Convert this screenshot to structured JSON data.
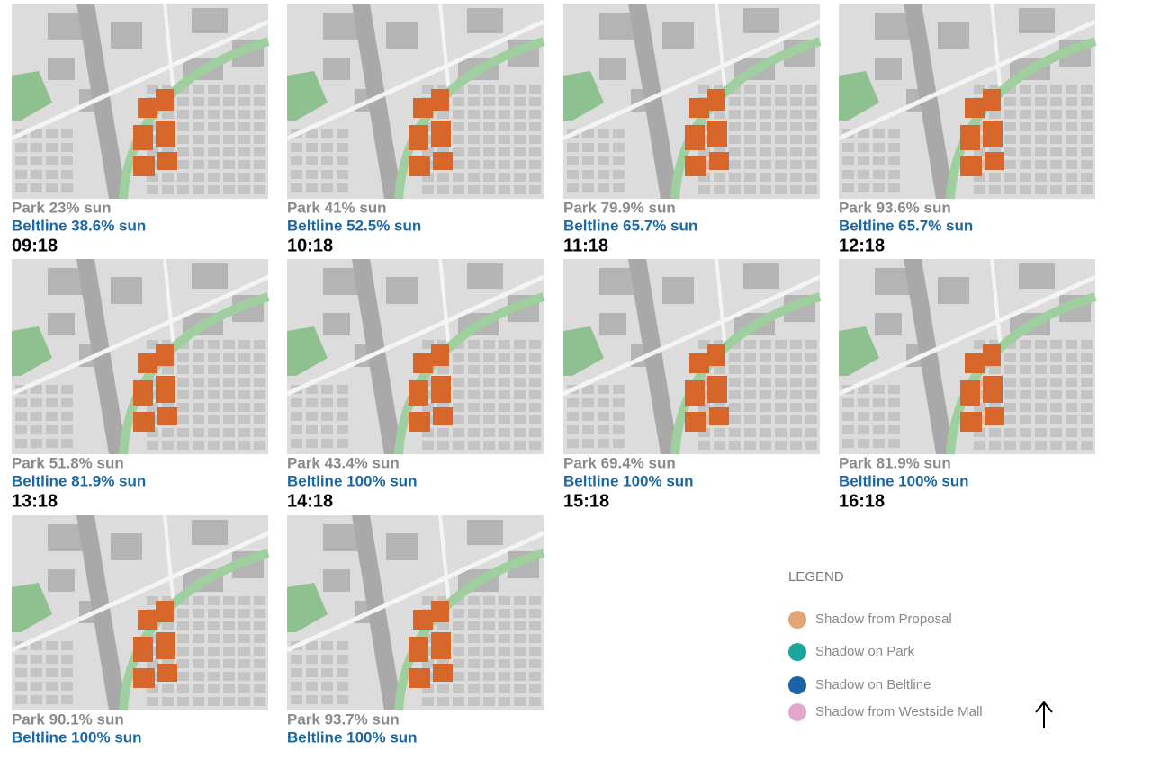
{
  "panels": [
    {
      "park": "Park 23% sun",
      "beltline": "Beltline 38.6% sun",
      "time": "09:18"
    },
    {
      "park": "Park 41% sun",
      "beltline": "Beltline 52.5% sun",
      "time": "10:18"
    },
    {
      "park": "Park 79.9% sun",
      "beltline": "Beltline 65.7% sun",
      "time": "11:18"
    },
    {
      "park": "Park 93.6% sun",
      "beltline": "Beltline 65.7% sun",
      "time": "12:18"
    },
    {
      "park": "Park 51.8% sun",
      "beltline": "Beltline 81.9% sun",
      "time": "13:18"
    },
    {
      "park": "Park 43.4% sun",
      "beltline": "Beltline 100% sun",
      "time": "14:18"
    },
    {
      "park": "Park 69.4% sun",
      "beltline": "Beltline 100% sun",
      "time": "15:18"
    },
    {
      "park": "Park 81.9% sun",
      "beltline": "Beltline 100% sun",
      "time": "16:18"
    },
    {
      "park": "Park 90.1% sun",
      "beltline": "Beltline 100% sun"
    },
    {
      "park": "Park 93.7% sun",
      "beltline": "Beltline 100% sun"
    }
  ],
  "legend": {
    "title": "LEGEND",
    "items": [
      {
        "label": "Shadow from Proposal",
        "color": "#e2a574"
      },
      {
        "label": "Shadow on Park",
        "color": "#1aa69a"
      },
      {
        "label": "Shadow on Beltline",
        "color": "#1a63a8"
      },
      {
        "label": "Shadow from Westside Mall",
        "color": "#e0a7cf"
      }
    ]
  }
}
